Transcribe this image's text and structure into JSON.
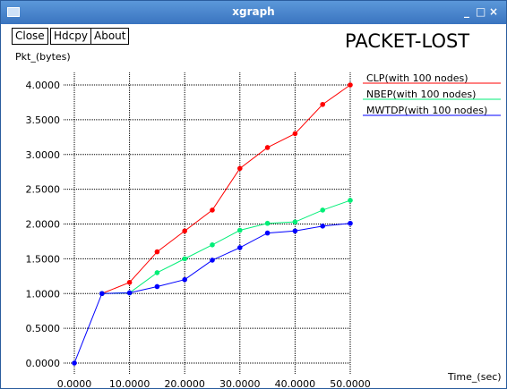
{
  "window": {
    "title": "xgraph",
    "controls": {
      "minimize": "_",
      "maximize": "□",
      "close": "×"
    }
  },
  "toolbar": {
    "close_label": "Close",
    "hdcpy_label": "Hdcpy",
    "about_label": "About"
  },
  "colors": {
    "titlebar": "#4a86cc",
    "clp": "#ff0000",
    "nbep": "#00ee77",
    "mwtdp": "#0000ff",
    "grid": "#000000"
  },
  "chart_data": {
    "type": "line",
    "title": "PACKET-LOST",
    "ylabel": "Pkt_(bytes)",
    "xlabel": "Time_(sec)",
    "xlim": [
      0,
      50
    ],
    "ylim": [
      0,
      4
    ],
    "xticks": [
      0,
      10,
      20,
      30,
      40,
      50
    ],
    "xtick_labels": [
      "0.0000",
      "10.0000",
      "20.0000",
      "30.0000",
      "40.0000",
      "50.0000"
    ],
    "yticks": [
      0,
      0.5,
      1,
      1.5,
      2,
      2.5,
      3,
      3.5,
      4
    ],
    "ytick_labels": [
      "0.0000",
      "0.5000",
      "1.0000",
      "1.5000",
      "2.0000",
      "2.5000",
      "3.0000",
      "3.5000",
      "4.0000"
    ],
    "grid": true,
    "legend_position": "right",
    "series": [
      {
        "name": "CLP(with 100 nodes)",
        "color": "#ff0000",
        "x": [
          5,
          10,
          15,
          20,
          25,
          30,
          35,
          40,
          45,
          50
        ],
        "y": [
          1.0,
          1.16,
          1.6,
          1.9,
          2.2,
          2.8,
          3.1,
          3.3,
          3.72,
          4.0
        ]
      },
      {
        "name": "NBEP(with 100 nodes)",
        "color": "#00ee77",
        "x": [
          5,
          10,
          15,
          20,
          25,
          30,
          35,
          40,
          45,
          50
        ],
        "y": [
          1.0,
          1.01,
          1.3,
          1.5,
          1.7,
          1.91,
          2.01,
          2.03,
          2.2,
          2.34
        ]
      },
      {
        "name": "MWTDP(with 100 nodes)",
        "color": "#0000ff",
        "x": [
          0,
          5,
          10,
          15,
          20,
          25,
          30,
          35,
          40,
          45,
          50
        ],
        "y": [
          0.0,
          1.0,
          1.01,
          1.1,
          1.2,
          1.48,
          1.66,
          1.87,
          1.9,
          1.97,
          2.01
        ]
      }
    ]
  }
}
